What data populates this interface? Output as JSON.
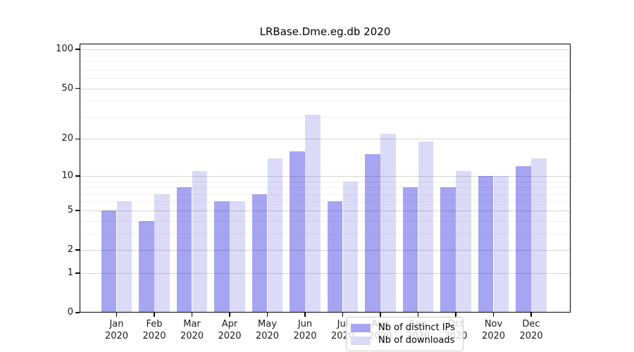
{
  "chart_data": {
    "type": "bar",
    "title": "LRBase.Dme.eg.db 2020",
    "categories": [
      {
        "month": "Jan",
        "year": "2020"
      },
      {
        "month": "Feb",
        "year": "2020"
      },
      {
        "month": "Mar",
        "year": "2020"
      },
      {
        "month": "Apr",
        "year": "2020"
      },
      {
        "month": "May",
        "year": "2020"
      },
      {
        "month": "Jun",
        "year": "2020"
      },
      {
        "month": "Jul",
        "year": "2020"
      },
      {
        "month": "Aug",
        "year": "2020"
      },
      {
        "month": "Sep",
        "year": "2020"
      },
      {
        "month": "Oct",
        "year": "2020"
      },
      {
        "month": "Nov",
        "year": "2020"
      },
      {
        "month": "Dec",
        "year": "2020"
      }
    ],
    "series": [
      {
        "name": "Nb of distinct IPs",
        "color": "#a5a5f2",
        "values": [
          5,
          4,
          8,
          6,
          7,
          16,
          6,
          15,
          8,
          8,
          10,
          12
        ]
      },
      {
        "name": "Nb of downloads",
        "color": "#dbdbf8",
        "values": [
          6,
          7,
          11,
          6,
          14,
          31,
          9,
          22,
          19,
          11,
          10,
          14
        ]
      }
    ],
    "xlabel": "",
    "ylabel": "",
    "y_axis": {
      "scale": "log1p",
      "tick_values": [
        0,
        1,
        2,
        5,
        10,
        20,
        50,
        100
      ],
      "minor_gridline_values": [
        3,
        4,
        6,
        7,
        8,
        9,
        30,
        40,
        60,
        70,
        80,
        90
      ],
      "ylim": [
        0,
        111
      ],
      "grid": true
    },
    "legend": {
      "position": "lower-center-left"
    }
  }
}
